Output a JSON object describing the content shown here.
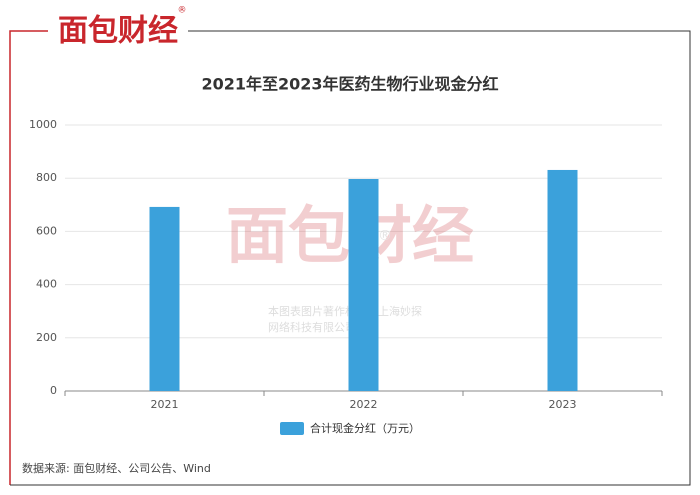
{
  "logo": {
    "text": "面包财经",
    "mark": "®"
  },
  "chart_data": {
    "type": "bar",
    "title": "2021年至2023年医药生物行业现金分红",
    "categories": [
      "2021",
      "2022",
      "2023"
    ],
    "series": [
      {
        "name": "合计现金分红（万元）",
        "color": "#3ba1db",
        "values": [
          692,
          797,
          831
        ]
      }
    ],
    "ylim": [
      0,
      1000
    ],
    "yticks": [
      0,
      200,
      400,
      600,
      800,
      1000
    ],
    "grid": true
  },
  "watermark": {
    "logo": "面包财经",
    "mark": "®",
    "line1": "本图表图片著作权属于上海妙探",
    "line2": "网络科技有限公司"
  },
  "source": "数据来源: 面包财经、公司公告、Wind"
}
